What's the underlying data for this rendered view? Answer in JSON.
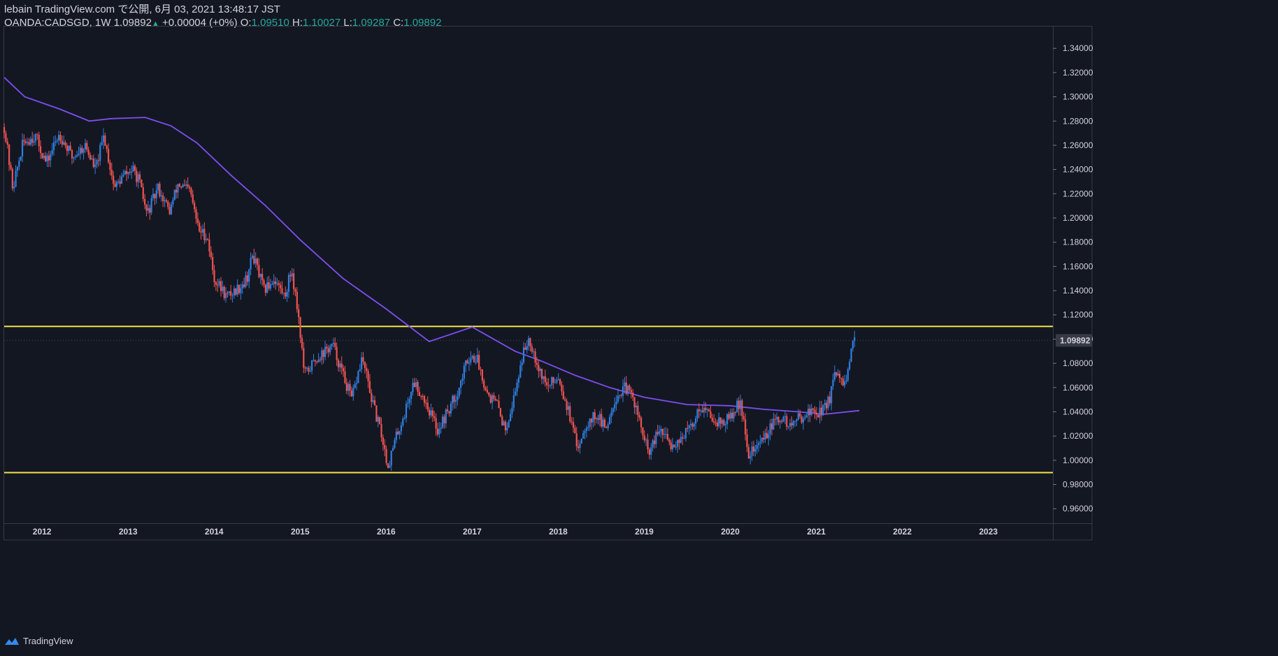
{
  "header": {
    "publish_line": "lebain TradingView.com で公開, 6月 03, 2021 13:48:17 JST",
    "symbol": "OANDA:CADSGD, 1W",
    "last": "1.09892",
    "change": "+0.00004 (+0%)",
    "o_label": "O:",
    "o_value": "1.09510",
    "h_label": "H:",
    "h_value": "1.10027",
    "l_label": "L:",
    "l_value": "1.09287",
    "c_label": "C:",
    "c_value": "1.09892"
  },
  "footer": {
    "brand": "TradingView"
  },
  "colors": {
    "background": "#131722",
    "up": "#2f7fe0",
    "down": "#ef5350",
    "ma": "#7e4ef0",
    "level": "#f5e14a",
    "axis": "#d1d4dc",
    "grid": "#2a2e39",
    "price_tag": "#ffffff"
  },
  "chart_data": {
    "type": "candlestick",
    "symbol": "OANDA:CADSGD",
    "interval": "1W",
    "y_ticks": [
      0.96,
      0.98,
      1.0,
      1.02,
      1.04,
      1.06,
      1.08,
      1.1,
      1.12,
      1.14,
      1.16,
      1.18,
      1.2,
      1.22,
      1.24,
      1.26,
      1.28,
      1.3,
      1.32,
      1.34
    ],
    "ylim": [
      0.948,
      1.358
    ],
    "xlim": [
      2011.56,
      2023.75
    ],
    "x_ticks": [
      "2012",
      "2013",
      "2014",
      "2015",
      "2016",
      "2017",
      "2018",
      "2019",
      "2020",
      "2021",
      "2022",
      "2023"
    ],
    "last_price_label": "1.09892",
    "last_price": 1.09892,
    "horizontal_levels": [
      1.1105,
      0.9898
    ],
    "price_path": [
      [
        2011.56,
        1.275
      ],
      [
        2011.66,
        1.225
      ],
      [
        2011.78,
        1.262
      ],
      [
        2011.92,
        1.268
      ],
      [
        2012.05,
        1.245
      ],
      [
        2012.2,
        1.27
      ],
      [
        2012.35,
        1.25
      ],
      [
        2012.5,
        1.26
      ],
      [
        2012.62,
        1.24
      ],
      [
        2012.72,
        1.268
      ],
      [
        2012.84,
        1.225
      ],
      [
        2012.95,
        1.235
      ],
      [
        2013.05,
        1.24
      ],
      [
        2013.12,
        1.232
      ],
      [
        2013.22,
        1.203
      ],
      [
        2013.35,
        1.225
      ],
      [
        2013.48,
        1.205
      ],
      [
        2013.58,
        1.228
      ],
      [
        2013.72,
        1.222
      ],
      [
        2013.82,
        1.19
      ],
      [
        2013.92,
        1.185
      ],
      [
        2014.0,
        1.15
      ],
      [
        2014.15,
        1.135
      ],
      [
        2014.28,
        1.142
      ],
      [
        2014.38,
        1.15
      ],
      [
        2014.45,
        1.17
      ],
      [
        2014.58,
        1.14
      ],
      [
        2014.7,
        1.15
      ],
      [
        2014.82,
        1.135
      ],
      [
        2014.9,
        1.158
      ],
      [
        2014.98,
        1.12
      ],
      [
        2015.05,
        1.07
      ],
      [
        2015.2,
        1.085
      ],
      [
        2015.38,
        1.095
      ],
      [
        2015.5,
        1.07
      ],
      [
        2015.6,
        1.05
      ],
      [
        2015.72,
        1.085
      ],
      [
        2015.85,
        1.045
      ],
      [
        2015.95,
        1.02
      ],
      [
        2016.02,
        0.995
      ],
      [
        2016.12,
        1.02
      ],
      [
        2016.22,
        1.04
      ],
      [
        2016.32,
        1.065
      ],
      [
        2016.45,
        1.05
      ],
      [
        2016.6,
        1.025
      ],
      [
        2016.75,
        1.045
      ],
      [
        2016.85,
        1.06
      ],
      [
        2016.95,
        1.085
      ],
      [
        2017.05,
        1.085
      ],
      [
        2017.18,
        1.055
      ],
      [
        2017.3,
        1.045
      ],
      [
        2017.38,
        1.025
      ],
      [
        2017.48,
        1.05
      ],
      [
        2017.58,
        1.085
      ],
      [
        2017.66,
        1.102
      ],
      [
        2017.78,
        1.075
      ],
      [
        2017.88,
        1.06
      ],
      [
        2018.0,
        1.07
      ],
      [
        2018.12,
        1.04
      ],
      [
        2018.22,
        1.01
      ],
      [
        2018.32,
        1.03
      ],
      [
        2018.45,
        1.038
      ],
      [
        2018.55,
        1.025
      ],
      [
        2018.65,
        1.05
      ],
      [
        2018.78,
        1.06
      ],
      [
        2018.88,
        1.05
      ],
      [
        2018.95,
        1.03
      ],
      [
        2019.05,
        1.005
      ],
      [
        2019.18,
        1.025
      ],
      [
        2019.32,
        1.012
      ],
      [
        2019.45,
        1.02
      ],
      [
        2019.55,
        1.028
      ],
      [
        2019.65,
        1.045
      ],
      [
        2019.8,
        1.035
      ],
      [
        2019.92,
        1.03
      ],
      [
        2020.05,
        1.04
      ],
      [
        2020.12,
        1.05
      ],
      [
        2020.2,
        1.005
      ],
      [
        2020.3,
        1.01
      ],
      [
        2020.4,
        1.02
      ],
      [
        2020.5,
        1.03
      ],
      [
        2020.6,
        1.035
      ],
      [
        2020.7,
        1.028
      ],
      [
        2020.8,
        1.035
      ],
      [
        2020.92,
        1.04
      ],
      [
        2021.05,
        1.04
      ],
      [
        2021.15,
        1.05
      ],
      [
        2021.22,
        1.07
      ],
      [
        2021.3,
        1.065
      ],
      [
        2021.35,
        1.062
      ],
      [
        2021.42,
        1.095
      ],
      [
        2021.45,
        1.09892
      ]
    ],
    "ma_path": [
      [
        2011.56,
        1.316
      ],
      [
        2011.8,
        1.3
      ],
      [
        2012.2,
        1.29
      ],
      [
        2012.55,
        1.28
      ],
      [
        2012.8,
        1.282
      ],
      [
        2013.2,
        1.283
      ],
      [
        2013.5,
        1.276
      ],
      [
        2013.8,
        1.262
      ],
      [
        2014.2,
        1.235
      ],
      [
        2014.6,
        1.21
      ],
      [
        2015.0,
        1.182
      ],
      [
        2015.5,
        1.15
      ],
      [
        2016.0,
        1.125
      ],
      [
        2016.5,
        1.098
      ],
      [
        2017.0,
        1.11
      ],
      [
        2017.5,
        1.09
      ],
      [
        2017.8,
        1.082
      ],
      [
        2018.2,
        1.07
      ],
      [
        2018.6,
        1.06
      ],
      [
        2019.0,
        1.052
      ],
      [
        2019.5,
        1.046
      ],
      [
        2020.0,
        1.045
      ],
      [
        2020.4,
        1.042
      ],
      [
        2020.8,
        1.04
      ],
      [
        2021.1,
        1.038
      ],
      [
        2021.5,
        1.041
      ]
    ]
  }
}
